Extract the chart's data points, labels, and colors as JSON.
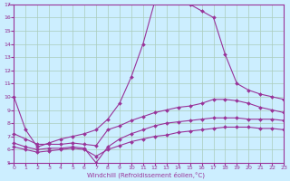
{
  "background_color": "#cceeff",
  "grid_color": "#aaccbb",
  "line_color": "#993399",
  "xlabel": "Windchill (Refroidissement éolien,°C)",
  "xlim": [
    -0.5,
    23
  ],
  "ylim": [
    5,
    17
  ],
  "yticks": [
    5,
    6,
    7,
    8,
    9,
    10,
    11,
    12,
    13,
    14,
    15,
    16,
    17
  ],
  "xticks": [
    0,
    1,
    2,
    3,
    4,
    5,
    6,
    7,
    8,
    9,
    10,
    11,
    12,
    13,
    14,
    15,
    16,
    17,
    18,
    19,
    20,
    21,
    22,
    23
  ],
  "line1_x": [
    0,
    1,
    2,
    3,
    4,
    5,
    6,
    7,
    8,
    9,
    10,
    11,
    12,
    13,
    14,
    15,
    16,
    17,
    18,
    19,
    20,
    21,
    22,
    23
  ],
  "line1_y": [
    10.0,
    7.5,
    6.2,
    6.5,
    6.8,
    7.0,
    7.2,
    7.5,
    8.3,
    9.5,
    11.5,
    14.0,
    17.2,
    17.5,
    17.3,
    17.0,
    16.5,
    16.0,
    13.2,
    11.0,
    10.5,
    10.2,
    10.0,
    9.8
  ],
  "line2_x": [
    0,
    1,
    2,
    3,
    4,
    5,
    6,
    7,
    8,
    9,
    10,
    11,
    12,
    13,
    14,
    15,
    16,
    17,
    18,
    19,
    20,
    21,
    22,
    23
  ],
  "line2_y": [
    7.2,
    6.8,
    6.4,
    6.4,
    6.4,
    6.5,
    6.4,
    6.3,
    7.5,
    7.8,
    8.2,
    8.5,
    8.8,
    9.0,
    9.2,
    9.3,
    9.5,
    9.8,
    9.8,
    9.7,
    9.5,
    9.2,
    9.0,
    8.8
  ],
  "line3_x": [
    0,
    1,
    2,
    3,
    4,
    5,
    6,
    7,
    8,
    9,
    10,
    11,
    12,
    13,
    14,
    15,
    16,
    17,
    18,
    19,
    20,
    21,
    22,
    23
  ],
  "line3_y": [
    6.5,
    6.2,
    6.0,
    6.1,
    6.1,
    6.2,
    6.1,
    5.0,
    6.2,
    6.8,
    7.2,
    7.5,
    7.8,
    8.0,
    8.1,
    8.2,
    8.3,
    8.4,
    8.4,
    8.4,
    8.3,
    8.3,
    8.3,
    8.2
  ],
  "line4_x": [
    0,
    1,
    2,
    3,
    4,
    5,
    6,
    7,
    8,
    9,
    10,
    11,
    12,
    13,
    14,
    15,
    16,
    17,
    18,
    19,
    20,
    21,
    22,
    23
  ],
  "line4_y": [
    6.2,
    6.0,
    5.8,
    5.9,
    6.0,
    6.1,
    6.0,
    5.5,
    6.0,
    6.3,
    6.6,
    6.8,
    7.0,
    7.1,
    7.3,
    7.4,
    7.5,
    7.6,
    7.7,
    7.7,
    7.7,
    7.6,
    7.6,
    7.5
  ]
}
